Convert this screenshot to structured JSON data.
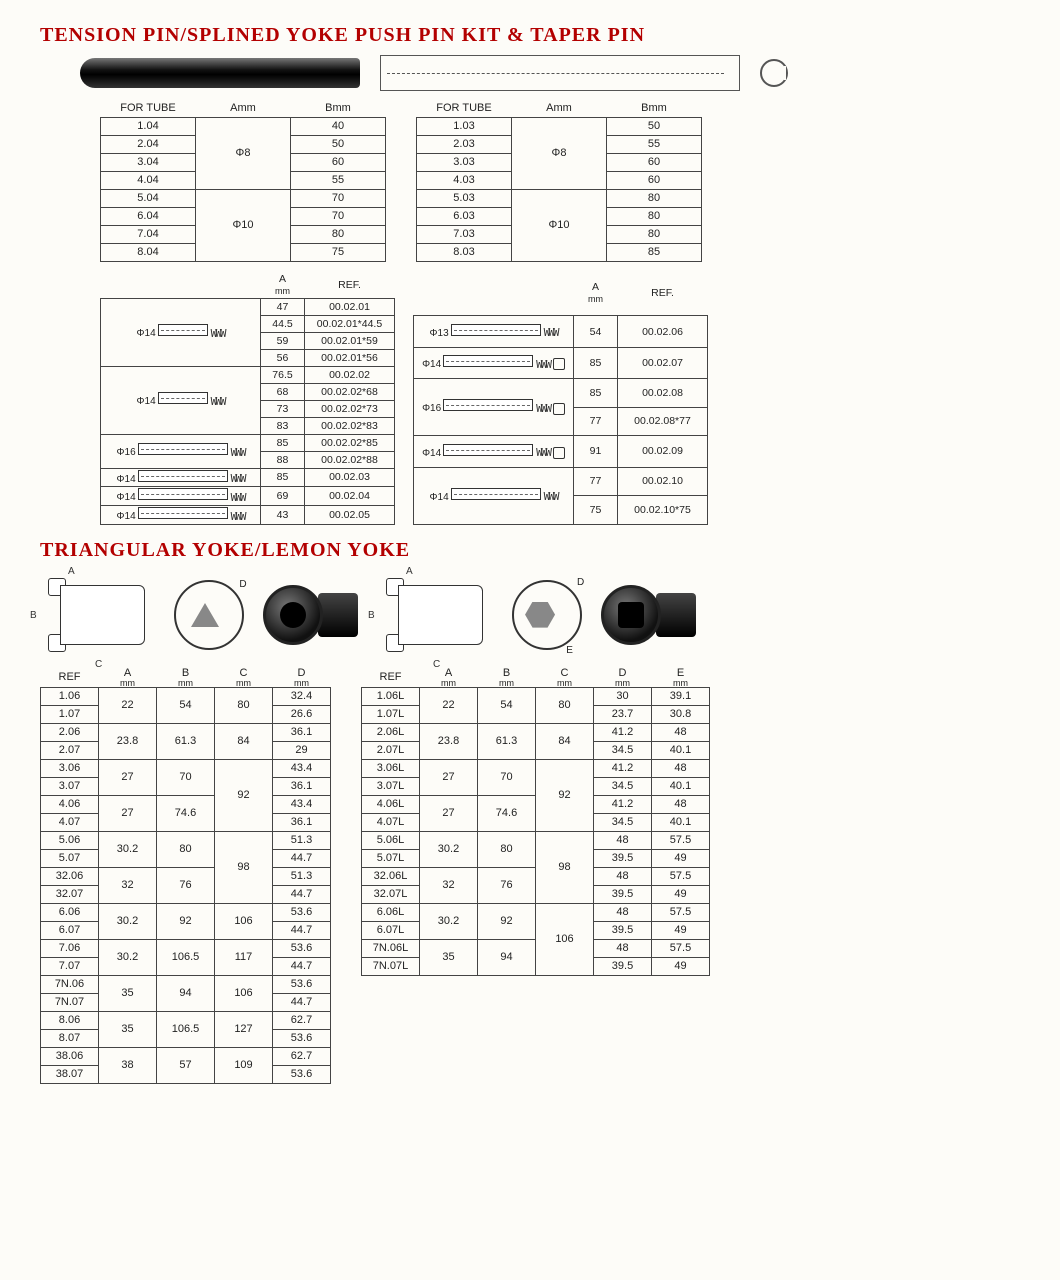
{
  "titles": {
    "section1": "TENSION PIN/SPLINED YOKE PUSH PIN KIT & TAPER PIN",
    "section2": "TRIANGULAR YOKE/LEMON YOKE"
  },
  "colors": {
    "heading": "#b30000",
    "border": "#444444",
    "text": "#222222",
    "background": "#fdfcf8"
  },
  "tube_tables": {
    "headers": [
      "FOR TUBE",
      "Amm",
      "Bmm"
    ],
    "left": [
      {
        "tube": "1.04",
        "a": "Φ8",
        "b": "40"
      },
      {
        "tube": "2.04",
        "a": "",
        "b": "50"
      },
      {
        "tube": "3.04",
        "a": "",
        "b": "60"
      },
      {
        "tube": "4.04",
        "a": "",
        "b": "55"
      },
      {
        "tube": "5.04",
        "a": "Φ10",
        "b": "70"
      },
      {
        "tube": "6.04",
        "a": "",
        "b": "70"
      },
      {
        "tube": "7.04",
        "a": "",
        "b": "80"
      },
      {
        "tube": "8.04",
        "a": "",
        "b": "75"
      }
    ],
    "right": [
      {
        "tube": "1.03",
        "a": "Φ8",
        "b": "50"
      },
      {
        "tube": "2.03",
        "a": "",
        "b": "55"
      },
      {
        "tube": "3.03",
        "a": "",
        "b": "60"
      },
      {
        "tube": "4.03",
        "a": "",
        "b": "60"
      },
      {
        "tube": "5.03",
        "a": "Φ10",
        "b": "80"
      },
      {
        "tube": "6.03",
        "a": "",
        "b": "80"
      },
      {
        "tube": "7.03",
        "a": "",
        "b": "80"
      },
      {
        "tube": "8.03",
        "a": "",
        "b": "85"
      }
    ]
  },
  "kit_tables": {
    "headers": {
      "a": "A",
      "unit": "mm",
      "ref": "REF."
    },
    "left": [
      {
        "dia": "Φ14",
        "rows": [
          {
            "a": "47",
            "ref": "00.02.01"
          },
          {
            "a": "44.5",
            "ref": "00.02.01*44.5"
          },
          {
            "a": "59",
            "ref": "00.02.01*59"
          },
          {
            "a": "56",
            "ref": "00.02.01*56"
          }
        ]
      },
      {
        "dia": "Φ14",
        "rows": [
          {
            "a": "76.5",
            "ref": "00.02.02"
          },
          {
            "a": "68",
            "ref": "00.02.02*68"
          },
          {
            "a": "73",
            "ref": "00.02.02*73"
          },
          {
            "a": "83",
            "ref": "00.02.02*83"
          }
        ]
      },
      {
        "dia": "Φ16",
        "rows": [
          {
            "a": "85",
            "ref": "00.02.02*85"
          },
          {
            "a": "88",
            "ref": "00.02.02*88"
          }
        ]
      },
      {
        "dia": "Φ14",
        "rows": [
          {
            "a": "85",
            "ref": "00.02.03"
          }
        ]
      },
      {
        "dia": "Φ14",
        "rows": [
          {
            "a": "69",
            "ref": "00.02.04"
          }
        ]
      },
      {
        "dia": "Φ14",
        "rows": [
          {
            "a": "43",
            "ref": "00.02.05"
          }
        ]
      }
    ],
    "right": [
      {
        "dia": "Φ13",
        "rows": [
          {
            "a": "54",
            "ref": "00.02.06"
          }
        ]
      },
      {
        "dia": "Φ14",
        "rows": [
          {
            "a": "85",
            "ref": "00.02.07"
          }
        ]
      },
      {
        "dia": "Φ16",
        "rows": [
          {
            "a": "85",
            "ref": "00.02.08"
          },
          {
            "a": "77",
            "ref": "00.02.08*77"
          }
        ]
      },
      {
        "dia": "Φ14",
        "rows": [
          {
            "a": "91",
            "ref": "00.02.09"
          }
        ]
      },
      {
        "dia": "Φ14",
        "rows": [
          {
            "a": "77",
            "ref": "00.02.10"
          },
          {
            "a": "75",
            "ref": "00.02.10*75"
          }
        ]
      }
    ]
  },
  "yoke_dims": {
    "labels": [
      "A",
      "B",
      "C",
      "D",
      "E"
    ]
  },
  "tri_yoke": {
    "headers": [
      "REF",
      "A",
      "B",
      "C",
      "D"
    ],
    "unit": "mm",
    "groups": [
      {
        "refs": [
          "1.06",
          "1.07"
        ],
        "a": "22",
        "b": "54",
        "c": "80",
        "d": [
          "32.4",
          "26.6"
        ]
      },
      {
        "refs": [
          "2.06",
          "2.07"
        ],
        "a": "23.8",
        "b": "61.3",
        "c": "84",
        "d": [
          "36.1",
          "29"
        ]
      },
      {
        "refs": [
          "3.06",
          "3.07"
        ],
        "a": "27",
        "b": "70",
        "c": "92",
        "d": [
          "43.4",
          "36.1"
        ]
      },
      {
        "refs": [
          "4.06",
          "4.07"
        ],
        "a": "27",
        "b": "74.6",
        "c": "",
        "d": [
          "43.4",
          "36.1"
        ]
      },
      {
        "refs": [
          "5.06",
          "5.07"
        ],
        "a": "30.2",
        "b": "80",
        "c": "98",
        "d": [
          "51.3",
          "44.7"
        ]
      },
      {
        "refs": [
          "32.06",
          "32.07"
        ],
        "a": "32",
        "b": "76",
        "c": "",
        "d": [
          "51.3",
          "44.7"
        ]
      },
      {
        "refs": [
          "6.06",
          "6.07"
        ],
        "a": "30.2",
        "b": "92",
        "c": "106",
        "d": [
          "53.6",
          "44.7"
        ]
      },
      {
        "refs": [
          "7.06",
          "7.07"
        ],
        "a": "30.2",
        "b": "106.5",
        "c": "117",
        "d": [
          "53.6",
          "44.7"
        ]
      },
      {
        "refs": [
          "7N.06",
          "7N.07"
        ],
        "a": "35",
        "b": "94",
        "c": "106",
        "d": [
          "53.6",
          "44.7"
        ]
      },
      {
        "refs": [
          "8.06",
          "8.07"
        ],
        "a": "35",
        "b": "106.5",
        "c": "127",
        "d": [
          "62.7",
          "53.6"
        ]
      },
      {
        "refs": [
          "38.06",
          "38.07"
        ],
        "a": "38",
        "b": "57",
        "c": "109",
        "d": [
          "62.7",
          "53.6"
        ]
      }
    ]
  },
  "lemon_yoke": {
    "headers": [
      "REF",
      "A",
      "B",
      "C",
      "D",
      "E"
    ],
    "unit": "mm",
    "groups": [
      {
        "refs": [
          "1.06L",
          "1.07L"
        ],
        "a": "22",
        "b": "54",
        "c": "80",
        "d": [
          "30",
          "23.7"
        ],
        "e": [
          "39.1",
          "30.8"
        ]
      },
      {
        "refs": [
          "2.06L",
          "2.07L"
        ],
        "a": "23.8",
        "b": "61.3",
        "c": "84",
        "d": [
          "41.2",
          "34.5"
        ],
        "e": [
          "48",
          "40.1"
        ]
      },
      {
        "refs": [
          "3.06L",
          "3.07L"
        ],
        "a": "27",
        "b": "70",
        "c": "92",
        "d": [
          "41.2",
          "34.5"
        ],
        "e": [
          "48",
          "40.1"
        ]
      },
      {
        "refs": [
          "4.06L",
          "4.07L"
        ],
        "a": "27",
        "b": "74.6",
        "c": "",
        "d": [
          "41.2",
          "34.5"
        ],
        "e": [
          "48",
          "40.1"
        ]
      },
      {
        "refs": [
          "5.06L",
          "5.07L"
        ],
        "a": "30.2",
        "b": "80",
        "c": "98",
        "d": [
          "48",
          "39.5"
        ],
        "e": [
          "57.5",
          "49"
        ]
      },
      {
        "refs": [
          "32.06L",
          "32.07L"
        ],
        "a": "32",
        "b": "76",
        "c": "",
        "d": [
          "48",
          "39.5"
        ],
        "e": [
          "57.5",
          "49"
        ]
      },
      {
        "refs": [
          "6.06L",
          "6.07L"
        ],
        "a": "30.2",
        "b": "92",
        "c": "106",
        "d": [
          "48",
          "39.5"
        ],
        "e": [
          "57.5",
          "49"
        ]
      },
      {
        "refs": [
          "7N.06L",
          "7N.07L"
        ],
        "a": "35",
        "b": "94",
        "c": "",
        "d": [
          "48",
          "39.5"
        ],
        "e": [
          "57.5",
          "49"
        ]
      }
    ]
  }
}
